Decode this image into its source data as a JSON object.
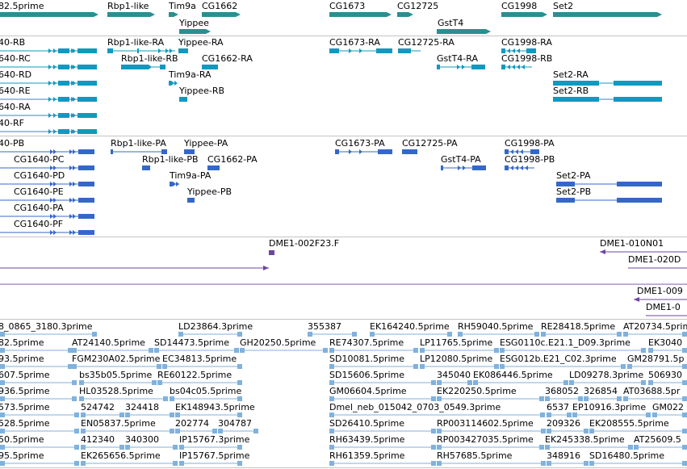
{
  "colors": {
    "gene": "#2a8f91",
    "transcript": "#1199be",
    "protein": "#3468c8",
    "clone": "#6c46a2",
    "est": "#7fb2de",
    "separator": "#c4c4c4"
  },
  "gene_track": {
    "labels": [
      "82.5prime",
      "Rbp1-like",
      "Tim9a",
      "CG1662",
      "Yippee",
      "CG1673",
      "CG12725",
      "GstT4",
      "CG1998",
      "Set2"
    ]
  },
  "transcript_track": {
    "labels": [
      "40-RB",
      "640-RC",
      "640-RD",
      "640-RE",
      "640-RA",
      "40-RF",
      "Rbp1-like-RA",
      "Yippee-RA",
      "Rbp1-like-RB",
      "CG1662-RA",
      "Tim9a-RA",
      "Yippee-RB",
      "CG1673-RA",
      "CG12725-RA",
      "CG1998-RA",
      "GstT4-RA",
      "CG1998-RB",
      "Set2-RA",
      "Set2-RB"
    ]
  },
  "protein_track": {
    "labels": [
      "40-PB",
      "CG1640-PC",
      "CG1640-PD",
      "CG1640-PE",
      "CG1640-PA",
      "CG1640-PF",
      "Rbp1-like-PA",
      "Yippee-PA",
      "Rbp1-like-PB",
      "CG1662-PA",
      "Tim9a-PA",
      "Yippee-PB",
      "CG1673-PA",
      "CG12725-PA",
      "CG1998-PA",
      "GstT4-PA",
      "CG1998-PB",
      "Set2-PA",
      "Set2-PB"
    ]
  },
  "clone_track": {
    "labels": [
      "DME1-002F23.F",
      "DME1-010N01",
      "DME1-020D",
      "DME1-009",
      "DME1-0"
    ]
  },
  "est_track": {
    "rows": [
      [
        "8_0865_3180.3prime",
        "LD23864.3prime",
        "355387",
        "EK164240.5prime",
        "RH59040.5prime",
        "RE28418.5prime",
        "AT20734.5prime"
      ],
      [
        "82.5prime",
        "AT24140.5prime",
        "SD14473.5prime",
        "GH20250.5prime",
        "RE74307.5prime",
        "LP11765.5prime",
        "ESG0110c.E21.1_D09.3prime",
        "EK3040"
      ],
      [
        "93.5prime",
        "FGM230A02.5prime",
        "EC34813.5prime",
        "SD10081.5prime",
        "LP12080.5prime",
        "ESG012b.E21_C02.3prime",
        "GM28791.5p"
      ],
      [
        "607.5prime",
        "bs35b05.5prime",
        "RE60122.5prime",
        "SD15606.5prime",
        "345040",
        "EK086446.5prime",
        "LD09278.3prime",
        "506930"
      ],
      [
        "936.5prime",
        "HL03528.5prime",
        "bs04c05.5prime",
        "GM06604.5prime",
        "EK220250.5prime",
        "368052",
        "326854",
        "AT03688.5pr"
      ],
      [
        "573.5prime",
        "524742",
        "324418",
        "EK148943.5prime",
        "Dmel_neb_015042_0703_0549.3prime",
        "6537",
        "EP10916.3prime",
        "GM022"
      ],
      [
        "528.5prime",
        "EN05837.5prime",
        "202774",
        "304787",
        "SD26410.5prime",
        "RP003114602.5prime",
        "209326",
        "EK208555.5prime"
      ],
      [
        "50.5prime",
        "412340",
        "340300",
        "IP15767.3prime",
        "RH63439.5prime",
        "RP003427035.5prime",
        "EK245338.5prime",
        "AT25609.5"
      ],
      [
        "95.5prime",
        "EK265656.5prime",
        "IP15767.5prime",
        "RH61359.5prime",
        "RH57685.5prime",
        "348916",
        "SD16480.5prime"
      ]
    ]
  }
}
